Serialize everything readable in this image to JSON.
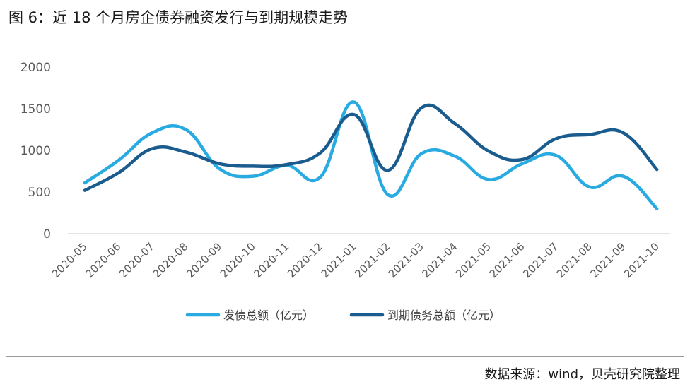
{
  "title": "图 6：近 18 个月房企债券融资发行与到期规模走势",
  "source": "数据来源：wind，贝壳研究院整理",
  "chart_data": {
    "type": "line",
    "title": "图 6：近 18 个月房企债券融资发行与到期规模走势",
    "xlabel": "",
    "ylabel": "",
    "ylim": [
      0,
      2000
    ],
    "yticks": [
      "2000",
      "1500",
      "1000",
      "500",
      "0"
    ],
    "categories": [
      "2020-05",
      "2020-06",
      "2020-07",
      "2020-08",
      "2020-09",
      "2020-10",
      "2020-11",
      "2020-12",
      "2021-01",
      "2021-02",
      "2021-03",
      "2021-04",
      "2021-05",
      "2021-06",
      "2021-07",
      "2021-08",
      "2021-09",
      "2021-10"
    ],
    "series": [
      {
        "name": "发债总额（亿元）",
        "color": "#29ABE2",
        "values": [
          610,
          880,
          1210,
          1250,
          780,
          690,
          820,
          680,
          1580,
          470,
          960,
          930,
          650,
          840,
          940,
          560,
          690,
          300
        ]
      },
      {
        "name": "到期债务总额（亿元）",
        "color": "#1B5C8F",
        "values": [
          520,
          730,
          1020,
          980,
          840,
          810,
          830,
          970,
          1430,
          760,
          1510,
          1320,
          990,
          890,
          1140,
          1190,
          1210,
          770
        ]
      }
    ],
    "grid": false,
    "legend": "bottom"
  }
}
